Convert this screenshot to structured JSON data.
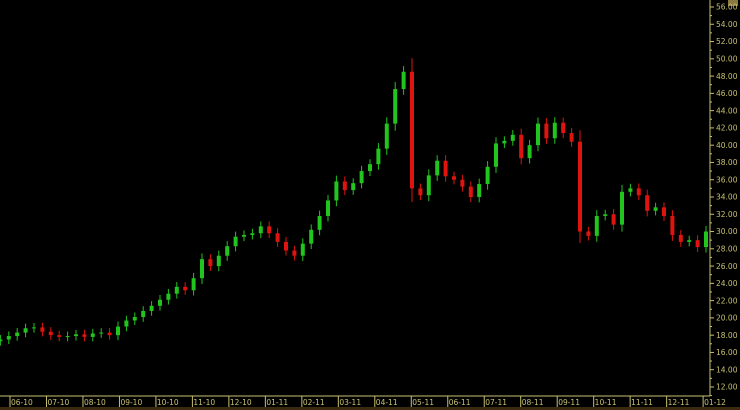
{
  "chart_data": {
    "type": "candlestick",
    "title": "",
    "xlabel": "",
    "ylabel": "",
    "ylim": [
      11,
      57
    ],
    "y_ticks": [
      "12.00",
      "14.00",
      "16.00",
      "18.00",
      "20.00",
      "22.00",
      "24.00",
      "26.00",
      "28.00",
      "30.00",
      "32.00",
      "34.00",
      "36.00",
      "38.00",
      "40.00",
      "42.00",
      "44.00",
      "46.00",
      "48.00",
      "50.00",
      "52.00",
      "54.00",
      "56.00"
    ],
    "x_ticks": [
      "06-10",
      "07-10",
      "08-10",
      "09-10",
      "10-10",
      "11-10",
      "12-10",
      "01-11",
      "02-11",
      "03-11",
      "04-11",
      "05-11",
      "06-11",
      "07-11",
      "08-11",
      "09-11",
      "10-11",
      "11-11",
      "12-11",
      "01-12"
    ],
    "grid": false,
    "colors": {
      "up": "#22c41e",
      "down": "#e0140f",
      "axis": "#c8c070",
      "background": "#000000"
    },
    "dates": [
      "2010-05-24",
      "2010-05-31",
      "2010-06-07",
      "2010-06-14",
      "2010-06-21",
      "2010-06-28",
      "2010-07-05",
      "2010-07-12",
      "2010-07-19",
      "2010-07-26",
      "2010-08-02",
      "2010-08-09",
      "2010-08-16",
      "2010-08-23",
      "2010-08-30",
      "2010-09-06",
      "2010-09-13",
      "2010-09-20",
      "2010-09-27",
      "2010-10-04",
      "2010-10-11",
      "2010-10-18",
      "2010-10-25",
      "2010-11-01",
      "2010-11-08",
      "2010-11-15",
      "2010-11-22",
      "2010-11-29",
      "2010-12-06",
      "2010-12-13",
      "2010-12-20",
      "2010-12-27",
      "2011-01-03",
      "2011-01-10",
      "2011-01-17",
      "2011-01-24",
      "2011-01-31",
      "2011-02-07",
      "2011-02-14",
      "2011-02-21",
      "2011-02-28",
      "2011-03-07",
      "2011-03-14",
      "2011-03-21",
      "2011-03-28",
      "2011-04-04",
      "2011-04-11",
      "2011-04-18",
      "2011-04-25",
      "2011-05-02",
      "2011-05-09",
      "2011-05-16",
      "2011-05-23",
      "2011-05-30",
      "2011-06-06",
      "2011-06-13",
      "2011-06-20",
      "2011-06-27",
      "2011-07-04",
      "2011-07-11",
      "2011-07-18",
      "2011-07-25",
      "2011-08-01",
      "2011-08-08",
      "2011-08-15",
      "2011-08-22",
      "2011-08-29",
      "2011-09-05",
      "2011-09-12",
      "2011-09-19",
      "2011-09-26",
      "2011-10-03",
      "2011-10-10",
      "2011-10-17",
      "2011-10-24",
      "2011-10-31",
      "2011-11-07",
      "2011-11-14",
      "2011-11-21",
      "2011-11-28",
      "2011-12-05",
      "2011-12-12",
      "2011-12-19",
      "2011-12-26",
      "2012-01-02"
    ],
    "close": [
      17.5,
      17.9,
      18.3,
      18.8,
      18.9,
      18.4,
      18.0,
      17.8,
      17.9,
      18.1,
      17.8,
      18.2,
      18.3,
      18.0,
      19.0,
      19.7,
      20.1,
      20.8,
      21.4,
      22.1,
      22.8,
      23.6,
      23.2,
      24.6,
      26.8,
      26.0,
      27.2,
      28.3,
      29.4,
      29.6,
      29.8,
      30.6,
      29.8,
      28.8,
      27.8,
      27.2,
      28.6,
      30.2,
      31.8,
      33.6,
      35.8,
      34.8,
      35.6,
      37.0,
      37.8,
      39.6,
      42.5,
      46.5,
      48.5,
      35.0,
      34.2,
      36.5,
      38.2,
      36.4,
      36.0,
      35.2,
      34.0,
      35.5,
      37.5,
      40.2,
      40.5,
      41.2,
      38.5,
      40.0,
      42.5,
      40.8,
      42.6,
      41.4,
      40.4,
      30.0,
      29.5,
      31.8,
      32.0,
      30.8,
      34.6,
      35.0,
      34.2,
      32.4,
      32.8,
      31.8,
      29.6,
      28.8,
      29.0,
      28.2,
      30.0
    ]
  }
}
